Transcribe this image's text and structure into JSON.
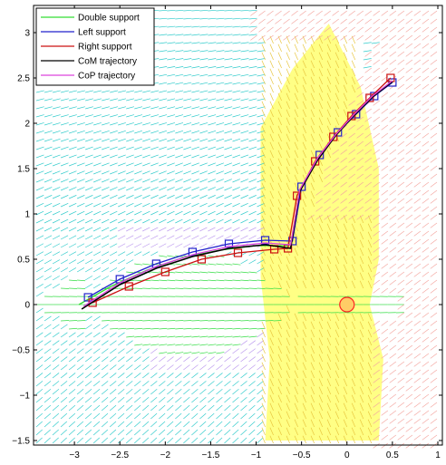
{
  "chart_data": {
    "type": "line",
    "title": "",
    "xlabel": "",
    "ylabel": "",
    "xlim": [
      -3.45,
      1.05
    ],
    "ylim": [
      -1.55,
      3.3
    ],
    "xticks": [
      -3,
      -2.5,
      -2,
      -1.5,
      -1,
      -0.5,
      0,
      0.5,
      1
    ],
    "xtick_labels": [
      "−3",
      "−2.5",
      "−2",
      "−1.5",
      "−1",
      "−0.5",
      "0",
      "0.5",
      "1"
    ],
    "yticks": [
      -1.5,
      -1,
      -0.5,
      0,
      0.5,
      1,
      1.5,
      2,
      2.5,
      3
    ],
    "ytick_labels": [
      "−1.5",
      "−1",
      "−0.5",
      "0",
      "0.5",
      "1",
      "1.5",
      "2",
      "2.5",
      "3"
    ],
    "grid": false,
    "legend_position": "top-left",
    "series": [
      {
        "name": "Double support",
        "color": "#33dd33",
        "x": [
          -2.95,
          -2.6,
          -2.2,
          -1.8,
          -1.4,
          -1.0,
          -0.65
        ],
        "y": [
          0.0,
          0.2,
          0.38,
          0.52,
          0.6,
          0.65,
          0.65
        ]
      },
      {
        "name": "Left support",
        "color": "#2222cc",
        "x": [
          -2.85,
          -2.5,
          -2.1,
          -1.7,
          -1.3,
          -0.9,
          -0.6,
          -0.5,
          -0.3,
          -0.1,
          0.1,
          0.3,
          0.5
        ],
        "y": [
          0.08,
          0.28,
          0.45,
          0.58,
          0.67,
          0.71,
          0.7,
          1.3,
          1.65,
          1.9,
          2.1,
          2.3,
          2.45
        ]
      },
      {
        "name": "Right support",
        "color": "#cc1111",
        "x": [
          -2.8,
          -2.4,
          -2.0,
          -1.6,
          -1.2,
          -0.8,
          -0.65,
          -0.55,
          -0.35,
          -0.15,
          0.05,
          0.25,
          0.48
        ],
        "y": [
          0.02,
          0.2,
          0.36,
          0.5,
          0.57,
          0.61,
          0.62,
          1.2,
          1.58,
          1.85,
          2.08,
          2.28,
          2.5
        ]
      },
      {
        "name": "CoM trajectory",
        "color": "#000000",
        "x": [
          -2.92,
          -2.5,
          -2.1,
          -1.7,
          -1.3,
          -0.9,
          -0.62,
          -0.52,
          -0.32,
          -0.12,
          0.08,
          0.28,
          0.5
        ],
        "y": [
          -0.05,
          0.22,
          0.4,
          0.53,
          0.62,
          0.66,
          0.62,
          1.25,
          1.6,
          1.87,
          2.09,
          2.29,
          2.46
        ]
      },
      {
        "name": "CoP trajectory",
        "color": "#dd44dd",
        "x": [
          -2.9,
          -2.5,
          -2.1,
          -1.7,
          -1.3,
          -0.9,
          -0.62,
          -0.52,
          -0.32,
          -0.12,
          0.08,
          0.28,
          0.5
        ],
        "y": [
          -0.02,
          0.24,
          0.42,
          0.55,
          0.64,
          0.68,
          0.66,
          1.27,
          1.62,
          1.88,
          2.1,
          2.3,
          2.47
        ]
      }
    ],
    "reference_circle": {
      "x": 0.0,
      "y": 0.0,
      "r": 0.08,
      "edge_color": "#ff2222",
      "face_color": "#ffcc66"
    },
    "vector_field_colors": {
      "cyan": "#33cccc",
      "green": "#33dd44",
      "yellow": "#ffff66",
      "salmon": "#f4a6a0",
      "violet": "#bb99ee"
    }
  }
}
